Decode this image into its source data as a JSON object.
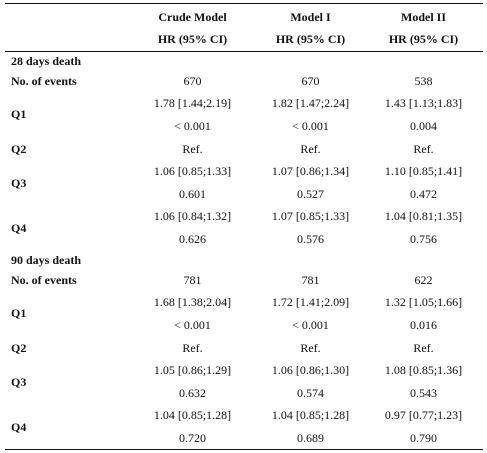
{
  "columns": [
    {
      "model": "Crude Model",
      "stat": "HR (95% CI)"
    },
    {
      "model": "Model I",
      "stat": "HR (95% CI)"
    },
    {
      "model": "Model II",
      "stat": "HR (95% CI)"
    }
  ],
  "sections": [
    {
      "title": "28 days death",
      "events_label": "No. of events",
      "events": [
        "670",
        "670",
        "538"
      ],
      "rows": [
        {
          "label": "Q1",
          "hr": [
            "1.78 [1.44;2.19]",
            "1.82 [1.47;2.24]",
            "1.43 [1.13;1.83]"
          ],
          "p": [
            "< 0.001",
            "< 0.001",
            "0.004"
          ]
        },
        {
          "label": "Q2",
          "hr": [
            "Ref.",
            "Ref.",
            "Ref."
          ]
        },
        {
          "label": "Q3",
          "hr": [
            "1.06 [0.85;1.33]",
            "1.07 [0.86;1.34]",
            "1.10 [0.85;1.41]"
          ],
          "p": [
            "0.601",
            "0.527",
            "0.472"
          ]
        },
        {
          "label": "Q4",
          "hr": [
            "1.06 [0.84;1.32]",
            "1.07 [0.85;1.33]",
            "1.04 [0.81;1.35]"
          ],
          "p": [
            "0.626",
            "0.576",
            "0.756"
          ]
        }
      ]
    },
    {
      "title": "90 days death",
      "events_label": "No. of events",
      "events": [
        "781",
        "781",
        "622"
      ],
      "rows": [
        {
          "label": "Q1",
          "hr": [
            "1.68 [1.38;2.04]",
            "1.72 [1.41;2.09]",
            "1.32 [1.05;1.66]"
          ],
          "p": [
            "< 0.001",
            "< 0.001",
            "0.016"
          ]
        },
        {
          "label": "Q2",
          "hr": [
            "Ref.",
            "Ref.",
            "Ref."
          ]
        },
        {
          "label": "Q3",
          "hr": [
            "1.05 [0.86;1.29]",
            "1.06 [0.86;1.30]",
            "1.08 [0.85;1.36]"
          ],
          "p": [
            "0.632",
            "0.574",
            "0.543"
          ]
        },
        {
          "label": "Q4",
          "hr": [
            "1.04 [0.85;1.28]",
            "1.04 [0.85;1.28]",
            "0.97 [0.77;1.23]"
          ],
          "p": [
            "0.720",
            "0.689",
            "0.790"
          ]
        }
      ]
    }
  ]
}
